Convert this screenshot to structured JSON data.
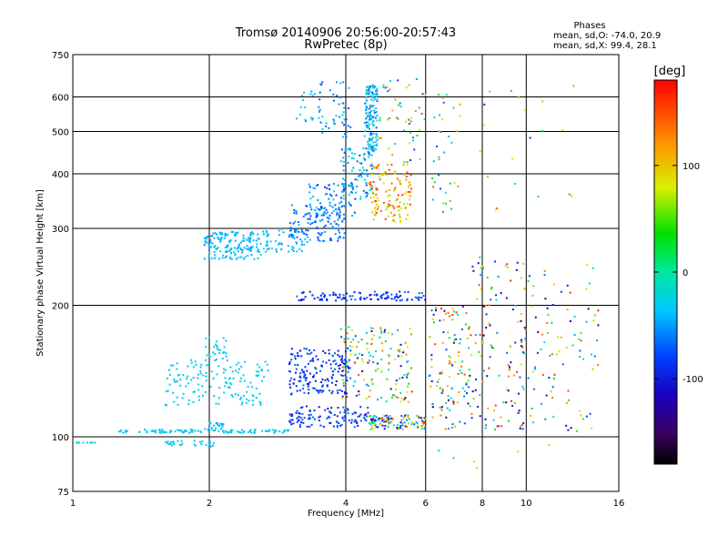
{
  "chart_data": {
    "type": "scatter",
    "title": "Tromsø 20140906 20:56:00-20:57:43",
    "subtitle": "RwPretec (8p)",
    "xlabel": "Frequency [MHz]",
    "ylabel": "Stationary phase Virtual Height [km]",
    "x_scale": "log",
    "y_scale": "log",
    "xlim": [
      1,
      16
    ],
    "ylim": [
      75,
      750
    ],
    "x_ticks": [
      "1",
      "2",
      "4",
      "6",
      "8",
      "10",
      "16"
    ],
    "x_tick_values": [
      1,
      2,
      4,
      6,
      8,
      10,
      16
    ],
    "y_ticks": [
      "75",
      "100",
      "200",
      "300",
      "400",
      "500",
      "600",
      "750"
    ],
    "y_tick_values": [
      75,
      100,
      200,
      300,
      400,
      500,
      600,
      750
    ],
    "grid": true,
    "stats_label": "Phases",
    "stats": [
      "mean, sd,O:  -74.0, 20.9",
      "mean, sd,X:  99.4, 28.1"
    ],
    "colorbar": {
      "label": "[deg]",
      "range": [
        -180,
        180
      ],
      "ticks": [
        "100",
        "0",
        "-100"
      ],
      "tick_values": [
        100,
        0,
        -100
      ]
    },
    "point_groups": [
      {
        "x": [
          1.0,
          1.12
        ],
        "y": [
          97,
          97
        ],
        "n": 10,
        "phase": [
          -30,
          -20
        ]
      },
      {
        "x": [
          1.25,
          1.32
        ],
        "y": [
          102,
          104
        ],
        "n": 8,
        "phase": [
          -40,
          -30
        ]
      },
      {
        "x": [
          1.4,
          1.95
        ],
        "y": [
          102,
          104
        ],
        "n": 50,
        "phase": [
          -40,
          -20
        ]
      },
      {
        "x": [
          1.95,
          2.15
        ],
        "y": [
          103,
          108
        ],
        "n": 25,
        "phase": [
          -50,
          -30
        ]
      },
      {
        "x": [
          2.15,
          3.0
        ],
        "y": [
          102,
          104
        ],
        "n": 50,
        "phase": [
          -40,
          -20
        ]
      },
      {
        "x": [
          1.6,
          1.75
        ],
        "y": [
          95,
          98
        ],
        "n": 15,
        "phase": [
          -40,
          -25
        ]
      },
      {
        "x": [
          1.85,
          2.05
        ],
        "y": [
          95,
          98
        ],
        "n": 15,
        "phase": [
          -40,
          -25
        ]
      },
      {
        "x": [
          1.6,
          2.7
        ],
        "y": [
          118,
          150
        ],
        "n": 140,
        "phase": [
          -40,
          -20
        ]
      },
      {
        "x": [
          1.95,
          2.2
        ],
        "y": [
          145,
          170
        ],
        "n": 30,
        "phase": [
          -40,
          -20
        ]
      },
      {
        "x": [
          1.95,
          2.6
        ],
        "y": [
          255,
          295
        ],
        "n": 160,
        "phase": [
          -50,
          -30
        ]
      },
      {
        "x": [
          2.6,
          3.3
        ],
        "y": [
          265,
          300
        ],
        "n": 60,
        "phase": [
          -50,
          -30
        ]
      },
      {
        "x": [
          3.0,
          4.0
        ],
        "y": [
          280,
          340
        ],
        "n": 120,
        "phase": [
          -80,
          -40
        ]
      },
      {
        "x": [
          3.3,
          4.2
        ],
        "y": [
          320,
          380
        ],
        "n": 70,
        "phase": [
          -90,
          -30
        ]
      },
      {
        "x": [
          3.9,
          4.6
        ],
        "y": [
          350,
          460
        ],
        "n": 90,
        "phase": [
          -80,
          -10
        ]
      },
      {
        "x": [
          4.4,
          4.7
        ],
        "y": [
          450,
          640
        ],
        "n": 140,
        "phase": [
          -70,
          -10
        ]
      },
      {
        "x": [
          3.5,
          4.1
        ],
        "y": [
          480,
          660
        ],
        "n": 45,
        "phase": [
          -80,
          -20
        ]
      },
      {
        "x": [
          3.1,
          3.6
        ],
        "y": [
          520,
          620
        ],
        "n": 20,
        "phase": [
          -60,
          -20
        ]
      },
      {
        "x": [
          4.5,
          5.6
        ],
        "y": [
          310,
          420
        ],
        "n": 120,
        "phase": [
          60,
          160
        ]
      },
      {
        "x": [
          4.7,
          6.0
        ],
        "y": [
          420,
          660
        ],
        "n": 50,
        "phase": [
          -100,
          160
        ]
      },
      {
        "x": [
          3.1,
          6.0
        ],
        "y": [
          205,
          215
        ],
        "n": 110,
        "phase": [
          -110,
          -60
        ]
      },
      {
        "x": [
          3.0,
          4.1
        ],
        "y": [
          125,
          160
        ],
        "n": 170,
        "phase": [
          -110,
          -60
        ]
      },
      {
        "x": [
          3.9,
          5.6
        ],
        "y": [
          120,
          180
        ],
        "n": 140,
        "phase": [
          -130,
          160
        ]
      },
      {
        "x": [
          3.0,
          4.5
        ],
        "y": [
          105,
          118
        ],
        "n": 110,
        "phase": [
          -110,
          -60
        ]
      },
      {
        "x": [
          4.5,
          6.0
        ],
        "y": [
          104,
          112
        ],
        "n": 110,
        "phase": [
          -150,
          170
        ]
      },
      {
        "x": [
          6.1,
          7.6
        ],
        "y": [
          103,
          200
        ],
        "n": 120,
        "phase": [
          -150,
          170
        ]
      },
      {
        "x": [
          7.6,
          10.0
        ],
        "y": [
          103,
          260
        ],
        "n": 120,
        "phase": [
          -150,
          170
        ]
      },
      {
        "x": [
          10.0,
          14.5
        ],
        "y": [
          103,
          250
        ],
        "n": 90,
        "phase": [
          -150,
          170
        ]
      },
      {
        "x": [
          6.2,
          7.2
        ],
        "y": [
          320,
          650
        ],
        "n": 35,
        "phase": [
          -80,
          150
        ]
      },
      {
        "x": [
          7.8,
          13.0
        ],
        "y": [
          320,
          650
        ],
        "n": 20,
        "phase": [
          -100,
          160
        ]
      },
      {
        "x": [
          6.4,
          14.5
        ],
        "y": [
          80,
          96
        ],
        "n": 6,
        "phase": [
          -120,
          150
        ]
      }
    ]
  }
}
